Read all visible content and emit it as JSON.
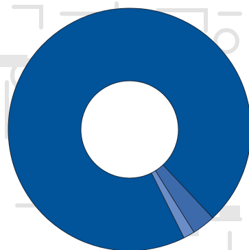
{
  "chart_data": {
    "type": "pie",
    "donut": true,
    "categories": [
      "",
      "",
      ""
    ],
    "values": [
      95.4,
      3.1,
      1.5
    ],
    "colors": [
      "#01539a",
      "#3d6aab",
      "#6b8dc7"
    ],
    "title": "",
    "legend": "none"
  },
  "colors": {
    "stroke": "#1b2a3a",
    "background_watermark": "#e3e3e3"
  }
}
